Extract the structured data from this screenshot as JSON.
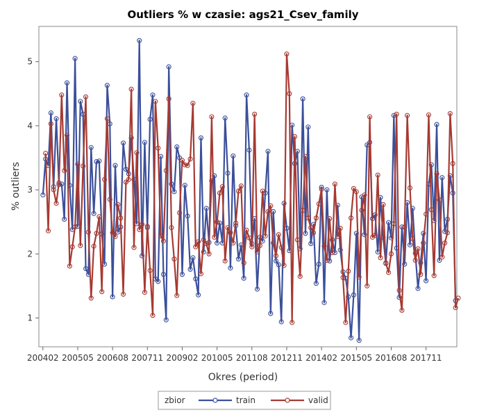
{
  "chart_data": {
    "type": "line",
    "title": "Outliers % w czasie: ags21_Csev_family",
    "xlabel": "Okres (period)",
    "ylabel": "% outliers",
    "x_tick_labels": [
      "200402",
      "200505",
      "200608",
      "200711",
      "200902",
      "201005",
      "201108",
      "201211",
      "201402",
      "201505",
      "201608",
      "201711"
    ],
    "x_tick_positions": [
      0,
      13,
      26,
      39,
      52,
      65,
      78,
      91,
      104,
      117,
      130,
      143
    ],
    "y_ticks": [
      1,
      2,
      3,
      4,
      5
    ],
    "ylim": [
      0.55,
      5.55
    ],
    "xlim": [
      -1.5,
      154.5
    ],
    "legend": {
      "title": "zbior",
      "placement": "bottom",
      "entries": [
        "train",
        "valid"
      ]
    },
    "series": [
      {
        "name": "train",
        "color": "#3b4f9a",
        "values": [
          2.92,
          3.48,
          3.38,
          4.2,
          3.05,
          4.11,
          3.08,
          3.09,
          2.54,
          4.67,
          3.07,
          2.38,
          5.05,
          2.43,
          4.38,
          4.18,
          1.77,
          1.68,
          3.66,
          2.63,
          3.44,
          3.45,
          2.31,
          1.84,
          4.63,
          4.03,
          1.33,
          3.38,
          2.34,
          2.42,
          3.73,
          3.32,
          3.25,
          3.81,
          3.16,
          2.47,
          5.33,
          1.97,
          3.74,
          2.41,
          4.1,
          4.48,
          1.61,
          1.57,
          3.52,
          1.68,
          0.97,
          4.92,
          3.09,
          2.97,
          3.67,
          3.5,
          1.68,
          3.07,
          2.59,
          1.76,
          1.94,
          1.61,
          1.36,
          3.81,
          2.03,
          2.71,
          2.18,
          3.14,
          3.22,
          2.17,
          2.48,
          2.17,
          4.12,
          3.26,
          1.78,
          3.53,
          2.44,
          1.92,
          2.14,
          1.62,
          4.48,
          3.62,
          2.16,
          2.55,
          1.45,
          2.26,
          2.2,
          2.95,
          3.6,
          1.07,
          2.66,
          1.89,
          1.83,
          0.94,
          2.79,
          2.4,
          2.05,
          4.01,
          3.41,
          3.6,
          2.08,
          4.42,
          2.32,
          3.98,
          2.16,
          2.46,
          1.54,
          1.84,
          3.04,
          1.24,
          3.0,
          1.89,
          2.22,
          2.02,
          2.76,
          2.06,
          1.72,
          1.62,
          1.33,
          0.69,
          1.36,
          2.32,
          0.65,
          2.89,
          2.3,
          3.7,
          3.74,
          2.55,
          2.61,
          2.03,
          2.88,
          2.26,
          1.85,
          2.49,
          2.25,
          4.16,
          2.09,
          1.32,
          2.42,
          1.84,
          2.8,
          2.14,
          2.71,
          2.01,
          1.46,
          1.86,
          2.32,
          1.58,
          3.09,
          3.39,
          2.52,
          4.02,
          1.9,
          3.19,
          2.35,
          2.54,
          3.22,
          2.95,
          1.27
        ],
        "x_start": 0
      },
      {
        "name": "valid",
        "color": "#a63a32",
        "values": [
          3.57,
          2.36,
          4.03,
          3.0,
          2.79,
          3.11,
          4.48,
          3.3,
          3.85,
          1.81,
          2.11,
          2.42,
          3.4,
          2.13,
          3.37,
          4.45,
          2.34,
          1.31,
          2.12,
          2.32,
          2.58,
          1.41,
          3.16,
          4.11,
          2.85,
          2.33,
          2.27,
          2.77,
          2.56,
          1.37,
          3.12,
          3.16,
          4.57,
          2.1,
          3.58,
          2.38,
          2.46,
          1.4,
          2.43,
          1.74,
          1.04,
          4.38,
          3.65,
          2.28,
          2.2,
          3.3,
          4.42,
          2.41,
          1.92,
          1.35,
          2.64,
          3.46,
          3.39,
          3.38,
          3.48,
          4.35,
          2.11,
          2.19,
          1.69,
          2.22,
          2.16,
          2.0,
          4.14,
          2.26,
          2.5,
          2.95,
          3.05,
          1.89,
          2.41,
          2.33,
          2.17,
          2.48,
          2.98,
          3.06,
          1.86,
          2.37,
          2.25,
          2.11,
          4.18,
          2.03,
          2.13,
          2.98,
          2.28,
          2.66,
          2.75,
          2.17,
          1.97,
          2.3,
          2.1,
          1.82,
          5.12,
          4.5,
          0.93,
          3.83,
          2.22,
          1.65,
          2.68,
          3.52,
          2.56,
          2.41,
          2.33,
          2.56,
          2.78,
          3.01,
          2.12,
          1.9,
          2.55,
          2.02,
          3.09,
          2.27,
          2.4,
          1.63,
          0.93,
          1.73,
          2.56,
          3.02,
          2.97,
          1.64,
          2.68,
          2.92,
          1.5,
          4.14,
          2.26,
          2.29,
          3.23,
          1.94,
          2.77,
          1.86,
          1.71,
          2.0,
          2.47,
          4.18,
          1.43,
          1.12,
          2.42,
          4.16,
          3.03,
          2.24,
          1.9,
          2.08,
          1.68,
          2.17,
          2.62,
          4.17,
          2.69,
          1.66,
          3.25,
          2.84,
          1.95,
          2.17,
          2.33,
          4.19,
          3.41,
          1.16,
          1.31
        ],
        "x_start": 1
      }
    ]
  }
}
